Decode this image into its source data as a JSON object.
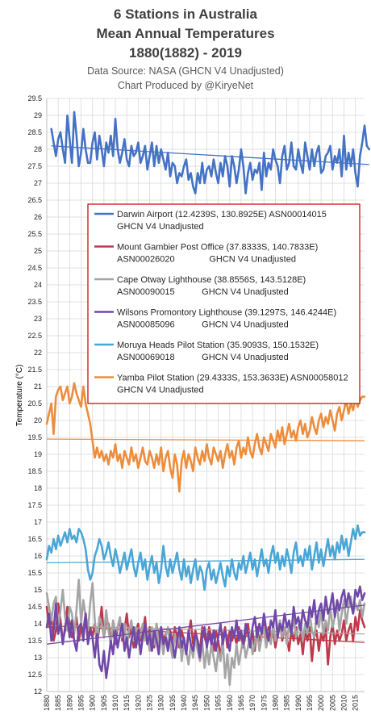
{
  "chart_data": {
    "type": "line",
    "title_lines": [
      "6 Stations in Australia",
      "Mean Annual Temperatures",
      "1880(1882) - 2019"
    ],
    "subtitle_lines": [
      "Data Source: NASA (GHCN V4 Unadjusted)",
      "Chart Produced by @KiryeNet"
    ],
    "ylabel": "Temperature (°C)",
    "xlabel": "",
    "ylim": [
      12,
      29.5
    ],
    "ytick_step": 0.5,
    "xlim": [
      1880,
      2019
    ],
    "xticks": [
      1880,
      1885,
      1890,
      1895,
      1900,
      1905,
      1910,
      1915,
      1920,
      1925,
      1930,
      1935,
      1940,
      1945,
      1950,
      1955,
      1960,
      1965,
      1970,
      1975,
      1980,
      1985,
      1990,
      1995,
      2000,
      2005,
      2010,
      2015
    ],
    "grid": true,
    "legend_placement": "center-right",
    "series": [
      {
        "name": "Darwin Airport",
        "legend_lines": [
          "Darwin Airport (12.4239S, 130.8925E) ASN00014015",
          "GHCN V4 Unadjusted"
        ],
        "color": "#4472c4",
        "start_year": 1882,
        "values": [
          28.6,
          28.2,
          27.8,
          28.3,
          28.5,
          28.0,
          27.6,
          29.0,
          28.3,
          27.6,
          29.1,
          28.4,
          27.5,
          27.9,
          28.6,
          28.0,
          27.6,
          27.6,
          28.2,
          28.5,
          27.7,
          28.4,
          28.0,
          27.5,
          28.2,
          27.9,
          28.4,
          27.8,
          28.9,
          28.0,
          27.6,
          27.9,
          28.3,
          27.7,
          27.5,
          28.1,
          27.8,
          27.9,
          28.2,
          27.6,
          27.8,
          28.1,
          27.4,
          27.8,
          28.2,
          27.5,
          28.1,
          27.6,
          28.0,
          27.7,
          27.4,
          27.9,
          27.2,
          27.6,
          27.5,
          27.0,
          27.3,
          27.2,
          27.5,
          27.7,
          27.1,
          27.3,
          26.9,
          26.7,
          27.3,
          27.0,
          27.6,
          27.0,
          27.4,
          27.5,
          27.2,
          27.7,
          27.3,
          27.0,
          27.6,
          27.2,
          27.8,
          27.5,
          26.9,
          27.8,
          27.5,
          27.0,
          27.4,
          28.0,
          27.5,
          26.7,
          27.3,
          27.6,
          27.1,
          27.4,
          27.3,
          27.6,
          26.8,
          27.9,
          27.2,
          27.6,
          27.4,
          28.0,
          27.7,
          27.5,
          27.0,
          27.8,
          28.1,
          27.4,
          27.6,
          28.2,
          27.5,
          27.4,
          28.0,
          27.6,
          27.3,
          28.2,
          27.8,
          27.4,
          28.0,
          27.5,
          27.9,
          28.1,
          27.3,
          27.4,
          27.8,
          27.9,
          28.1,
          27.4,
          27.8,
          27.6,
          28.0,
          27.2,
          28.4,
          27.4,
          27.9,
          27.5,
          28.0,
          27.3,
          26.9,
          27.8,
          28.2,
          28.7,
          28.1,
          28.0
        ],
        "trend": [
          28.1,
          27.55
        ]
      },
      {
        "name": "Mount Gambier Post Office",
        "legend_lines": [
          "Mount Gambier Post Office (37.8333S, 140.7833E)",
          "ASN00026020              GHCN V4 Unadjusted"
        ],
        "color": "#c0384a",
        "start_year": 1880,
        "values": [
          14.5,
          13.9,
          14.2,
          13.5,
          13.8,
          14.6,
          14.1,
          13.5,
          13.8,
          14.5,
          14.0,
          13.6,
          13.8,
          14.2,
          13.5,
          13.9,
          13.8,
          14.3,
          13.7,
          13.9,
          13.6,
          14.0,
          13.4,
          13.9,
          14.5,
          13.6,
          14.1,
          14.0,
          13.5,
          13.8,
          13.4,
          13.9,
          14.1,
          13.5,
          13.8,
          14.3,
          13.6,
          13.9,
          13.3,
          13.8,
          14.0,
          13.5,
          13.7,
          14.2,
          13.4,
          13.9,
          13.6,
          13.3,
          14.0,
          13.6,
          13.9,
          13.5,
          13.7,
          13.2,
          13.8,
          13.4,
          13.9,
          13.6,
          13.3,
          13.8,
          13.5,
          13.1,
          13.7,
          14.1,
          13.4,
          13.8,
          13.5,
          13.2,
          13.9,
          13.6,
          13.4,
          13.9,
          13.6,
          13.2,
          13.8,
          13.5,
          13.0,
          13.6,
          13.9,
          13.3,
          13.8,
          13.5,
          13.7,
          13.4,
          13.9,
          13.6,
          13.3,
          13.7,
          14.0,
          13.5,
          13.8,
          13.2,
          13.9,
          13.5,
          13.7,
          14.0,
          13.4,
          13.9,
          13.6,
          13.8,
          13.3,
          13.7,
          14.1,
          13.5,
          13.9,
          13.6,
          13.2,
          13.8,
          13.5,
          13.9,
          13.4,
          13.7,
          13.1,
          13.8,
          13.5,
          13.9,
          12.9,
          13.6,
          13.8,
          13.2,
          13.7,
          13.5,
          13.9,
          12.8,
          13.6,
          14.0,
          13.4,
          13.8,
          13.5,
          13.7,
          14.1,
          13.5,
          13.8,
          14.0,
          13.5,
          14.2,
          13.8,
          14.4,
          14.1,
          13.9
        ],
        "trend": [
          13.95,
          13.45
        ]
      },
      {
        "name": "Cape Otway Lighthouse",
        "legend_lines": [
          "Cape Otway Lighthouse (38.8556S, 143.5128E)",
          "ASN00090015           GHCN V4 Unadjusted"
        ],
        "color": "#a5a5a5",
        "start_year": 1880,
        "values": [
          14.9,
          14.5,
          14.1,
          14.6,
          14.8,
          13.9,
          14.4,
          15.0,
          14.2,
          13.8,
          14.5,
          14.3,
          13.7,
          14.4,
          15.3,
          14.0,
          14.7,
          14.2,
          13.8,
          14.6,
          15.2,
          14.1,
          13.5,
          14.2,
          14.0,
          13.6,
          14.4,
          13.8,
          13.4,
          14.1,
          13.7,
          13.9,
          14.2,
          13.6,
          14.0,
          13.3,
          13.8,
          14.1,
          13.5,
          13.9,
          13.4,
          13.7,
          14.0,
          13.5,
          13.8,
          13.2,
          13.9,
          13.4,
          14.0,
          13.3,
          13.7,
          13.1,
          13.6,
          13.9,
          13.4,
          13.0,
          13.7,
          13.3,
          13.8,
          12.9,
          13.5,
          13.2,
          12.8,
          13.4,
          13.0,
          13.6,
          13.2,
          12.9,
          13.5,
          12.7,
          13.3,
          12.8,
          13.4,
          13.0,
          12.6,
          13.2,
          12.9,
          13.5,
          12.4,
          13.1,
          12.2,
          13.0,
          12.7,
          13.4,
          12.8,
          13.2,
          13.6,
          13.0,
          13.3,
          13.7,
          13.1,
          13.4,
          13.8,
          13.2,
          13.6,
          13.9,
          13.3,
          13.7,
          13.4,
          14.0,
          13.5,
          13.8,
          14.1,
          13.6,
          13.9,
          13.4,
          14.0,
          13.7,
          14.2,
          13.6,
          13.9,
          14.1,
          13.5,
          14.0,
          13.7,
          14.3,
          13.8,
          13.6,
          14.2,
          13.9,
          14.4,
          13.7,
          14.1,
          13.8,
          14.5,
          13.9,
          14.2,
          14.6,
          13.8,
          14.3,
          14.7,
          14.0,
          14.5,
          14.8,
          14.3,
          14.6,
          14.4,
          14.7,
          14.2,
          14.6
        ],
        "trend": [
          13.95,
          13.7
        ]
      },
      {
        "name": "Wilsons Promontory Lighthouse",
        "legend_lines": [
          "Wilsons Promontory Lighthouse (39.1297S, 146.4244E)",
          "ASN00085096           GHCN V4 Unadjusted"
        ],
        "color": "#7048a8",
        "start_year": 1880,
        "values": [
          13.9,
          14.3,
          13.5,
          13.8,
          14.6,
          13.7,
          14.0,
          13.4,
          13.9,
          14.2,
          13.6,
          14.1,
          13.5,
          13.2,
          13.9,
          14.0,
          13.5,
          14.3,
          13.4,
          13.8,
          13.6,
          13.0,
          13.7,
          12.8,
          12.6,
          13.2,
          12.4,
          12.9,
          13.5,
          13.1,
          13.8,
          13.3,
          13.7,
          14.0,
          13.2,
          13.6,
          13.0,
          13.5,
          13.9,
          13.3,
          13.8,
          13.1,
          13.6,
          14.0,
          13.4,
          13.7,
          13.2,
          13.8,
          13.5,
          13.1,
          13.9,
          13.4,
          13.6,
          13.2,
          13.7,
          13.4,
          13.0,
          13.5,
          13.9,
          13.3,
          13.6,
          13.1,
          13.8,
          13.4,
          13.2,
          13.7,
          13.5,
          13.0,
          13.6,
          13.9,
          13.3,
          13.7,
          13.4,
          13.8,
          13.2,
          13.6,
          14.0,
          13.4,
          13.8,
          13.5,
          13.2,
          13.9,
          13.6,
          14.1,
          13.5,
          13.8,
          13.4,
          14.0,
          13.7,
          13.3,
          13.9,
          14.2,
          13.6,
          14.0,
          13.7,
          14.3,
          13.8,
          13.5,
          14.1,
          13.9,
          14.4,
          13.6,
          14.0,
          13.8,
          14.3,
          13.9,
          14.1,
          13.7,
          14.5,
          14.0,
          14.2,
          13.8,
          14.4,
          14.1,
          13.9,
          14.5,
          14.2,
          14.7,
          14.0,
          14.4,
          14.6,
          14.1,
          14.8,
          14.3,
          14.5,
          14.9,
          14.2,
          14.7,
          14.4,
          14.8,
          15.0,
          14.5,
          14.9,
          14.6,
          14.3,
          15.0,
          14.8,
          15.1,
          14.7,
          14.9
        ],
        "trend": [
          13.4,
          14.55
        ]
      },
      {
        "name": "Moruya Heads Pilot Station",
        "legend_lines": [
          "Moruya Heads Pilot Station (35.9093S, 150.1532E)",
          "ASN00069018           GHCN V4 Unadjusted"
        ],
        "color": "#4aa6d6",
        "start_year": 1880,
        "values": [
          15.9,
          16.3,
          16.1,
          16.5,
          16.2,
          16.6,
          16.3,
          16.5,
          16.7,
          16.4,
          16.8,
          16.5,
          16.6,
          16.4,
          16.8,
          16.7,
          16.5,
          16.2,
          15.6,
          15.3,
          15.5,
          16.0,
          16.2,
          16.5,
          16.3,
          15.9,
          16.1,
          16.4,
          16.0,
          15.7,
          16.2,
          15.9,
          15.5,
          15.8,
          16.1,
          15.6,
          15.9,
          16.2,
          15.7,
          15.4,
          15.8,
          16.1,
          15.6,
          15.9,
          15.3,
          15.7,
          16.0,
          15.5,
          15.8,
          15.2,
          15.6,
          16.3,
          15.7,
          15.4,
          15.9,
          15.5,
          15.8,
          16.1,
          15.6,
          15.3,
          15.9,
          15.4,
          15.7,
          15.2,
          15.6,
          15.9,
          15.3,
          15.7,
          15.5,
          15.0,
          15.6,
          15.8,
          15.3,
          15.6,
          15.2,
          15.5,
          15.8,
          15.4,
          15.1,
          15.7,
          15.4,
          15.9,
          15.5,
          15.3,
          15.8,
          15.6,
          16.0,
          15.5,
          15.8,
          16.1,
          15.6,
          15.9,
          15.4,
          15.8,
          16.2,
          15.7,
          15.9,
          15.5,
          16.0,
          16.3,
          15.8,
          16.1,
          15.6,
          16.0,
          15.7,
          16.2,
          15.9,
          15.5,
          16.1,
          16.4,
          15.8,
          16.0,
          15.7,
          16.2,
          15.9,
          16.3,
          15.6,
          16.0,
          16.4,
          15.8,
          16.2,
          15.7,
          16.1,
          16.5,
          16.0,
          16.3,
          15.9,
          16.4,
          16.1,
          16.6,
          16.2,
          16.5,
          16.0,
          16.4,
          16.8,
          16.5,
          16.9,
          16.6,
          16.7,
          16.7
        ],
        "trend": [
          15.8,
          15.9
        ]
      },
      {
        "name": "Yamba Pilot Station",
        "legend_lines": [
          "Yamba Pilot Station (29.4333S, 153.3633E) ASN00058012",
          "GHCN V4 Unadjusted"
        ],
        "color": "#ed8d3c",
        "start_year": 1880,
        "values": [
          19.9,
          20.2,
          20.5,
          19.6,
          20.7,
          20.9,
          21.0,
          20.6,
          20.8,
          21.0,
          20.5,
          20.7,
          21.1,
          20.8,
          20.6,
          20.4,
          21.0,
          20.5,
          20.2,
          19.9,
          19.4,
          18.9,
          19.2,
          18.9,
          19.1,
          18.8,
          19.0,
          18.7,
          19.1,
          18.9,
          19.3,
          18.8,
          19.0,
          18.6,
          19.1,
          18.9,
          18.7,
          19.2,
          18.8,
          19.0,
          18.6,
          18.9,
          19.2,
          18.8,
          18.7,
          19.1,
          18.9,
          18.6,
          19.0,
          18.7,
          19.2,
          18.5,
          18.9,
          19.1,
          18.6,
          18.3,
          19.0,
          18.7,
          17.9,
          18.8,
          19.1,
          18.6,
          19.0,
          18.8,
          18.5,
          19.2,
          18.9,
          18.7,
          19.1,
          18.8,
          19.3,
          18.9,
          18.7,
          19.2,
          19.0,
          18.8,
          19.1,
          18.6,
          19.0,
          19.3,
          18.9,
          19.1,
          18.7,
          19.2,
          19.4,
          18.9,
          19.2,
          19.0,
          19.5,
          19.1,
          18.9,
          19.3,
          19.6,
          19.2,
          19.0,
          19.5,
          19.3,
          19.1,
          19.6,
          19.4,
          19.2,
          19.7,
          19.4,
          19.8,
          19.3,
          19.6,
          19.9,
          19.5,
          19.7,
          19.4,
          19.8,
          20.0,
          19.6,
          19.9,
          19.5,
          19.7,
          20.1,
          19.8,
          19.6,
          20.0,
          20.2,
          19.8,
          20.1,
          19.9,
          20.3,
          20.0,
          19.7,
          20.2,
          20.4,
          20.0,
          20.3,
          20.6,
          20.2,
          20.5,
          20.3,
          20.7,
          20.4,
          20.6,
          20.7,
          20.7
        ],
        "trend": [
          19.45,
          19.4
        ]
      }
    ]
  }
}
